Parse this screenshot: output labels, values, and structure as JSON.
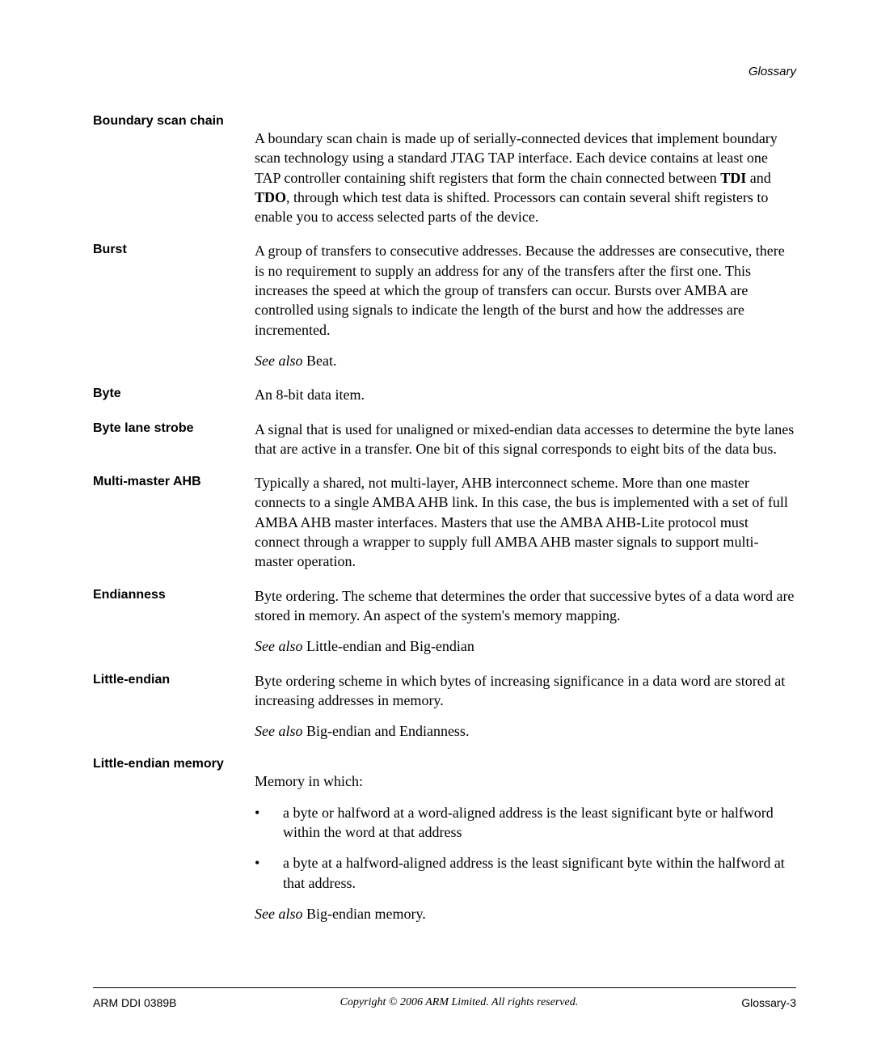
{
  "header": {
    "label": "Glossary"
  },
  "entries": [
    {
      "term": "Boundary scan chain",
      "breakAfterTerm": true,
      "paragraphs": [
        {
          "type": "html",
          "html": "A boundary scan chain is made up of serially-connected devices that implement boundary scan technology using a standard JTAG TAP interface. Each device contains at least one TAP controller containing shift registers that form the chain connected between <span class=\"bold-inline\">TDI</span> and <span class=\"bold-inline\">TDO</span>, through which test data is shifted. Processors can contain several shift registers to enable you to access selected parts of the device."
        }
      ]
    },
    {
      "term": "Burst",
      "paragraphs": [
        {
          "type": "text",
          "text": "A group of transfers to consecutive addresses. Because the addresses are consecutive, there is no requirement to supply an address for any of the transfers after the first one. This increases the speed at which the group of transfers can occur. Bursts over AMBA are controlled using signals to indicate the length of the burst and how the addresses are incremented."
        },
        {
          "type": "seealso",
          "prefix": "See also ",
          "ref": "Beat."
        }
      ]
    },
    {
      "term": "Byte",
      "paragraphs": [
        {
          "type": "text",
          "text": "An 8-bit data item."
        }
      ]
    },
    {
      "term": "Byte lane strobe",
      "paragraphs": [
        {
          "type": "text",
          "text": "A signal that is used for unaligned or mixed-endian data accesses to determine the byte lanes that are active in a transfer. One bit of this signal corresponds to eight bits of the data bus."
        }
      ]
    },
    {
      "term": "Multi-master AHB",
      "paragraphs": [
        {
          "type": "text",
          "text": "Typically a shared, not multi-layer, AHB interconnect scheme. More than one master connects to a single AMBA AHB link. In this case, the bus is implemented with a set of full AMBA AHB master interfaces. Masters that use the AMBA AHB-Lite protocol must connect through a wrapper to supply full AMBA AHB master signals to support multi-master operation."
        }
      ]
    },
    {
      "term": "Endianness",
      "paragraphs": [
        {
          "type": "text",
          "text": "Byte ordering. The scheme that determines the order that successive bytes of a data word are stored in memory. An aspect of the system's memory mapping."
        },
        {
          "type": "seealso",
          "prefix": "See also ",
          "ref": "Little-endian and Big-endian"
        }
      ]
    },
    {
      "term": "Little-endian",
      "paragraphs": [
        {
          "type": "text",
          "text": "Byte ordering scheme in which bytes of increasing significance in a data word are stored at increasing addresses in memory."
        },
        {
          "type": "seealso",
          "prefix": "See also ",
          "ref": "Big-endian and Endianness."
        }
      ]
    },
    {
      "term": "Little-endian memory",
      "breakAfterTerm": true,
      "paragraphs": [
        {
          "type": "text",
          "text": "Memory in which:"
        },
        {
          "type": "bullets",
          "items": [
            "a byte or halfword at a word-aligned address is the least significant byte or halfword within the word at that address",
            "a byte at a halfword-aligned address is the least significant byte within the halfword at that address."
          ]
        },
        {
          "type": "seealso",
          "prefix": "See also ",
          "ref": "Big-endian memory."
        }
      ]
    }
  ],
  "footer": {
    "left": "ARM DDI 0389B",
    "center": "Copyright © 2006 ARM Limited. All rights reserved.",
    "right": "Glossary-3"
  }
}
